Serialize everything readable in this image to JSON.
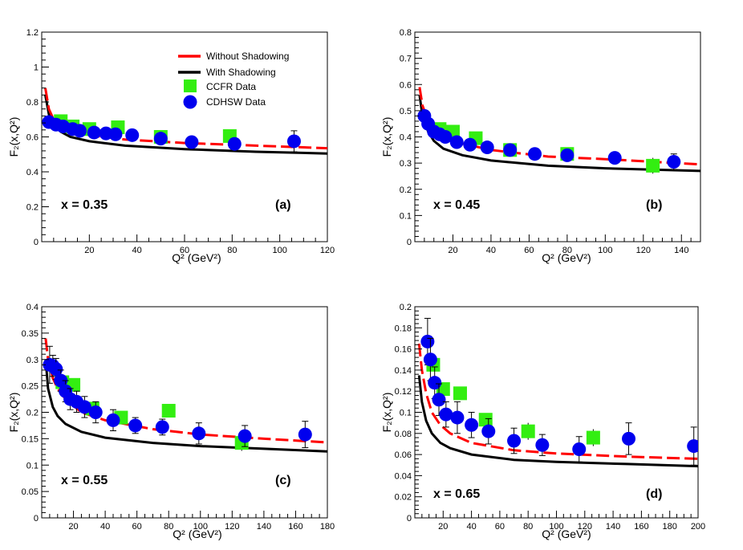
{
  "legend": {
    "without_label": "Without Shadowing",
    "with_label": "With Shadowing",
    "ccfr_label": "CCFR Data",
    "cdhsw_label": "CDHSW Data"
  },
  "colors": {
    "without": "#ff0000",
    "with": "#000000",
    "ccfr": "#33ee11",
    "cdhsw": "#0000ee"
  },
  "chart_data": [
    {
      "type": "scatter",
      "panel": "(a)",
      "x_value_label": "x = 0.35",
      "xlabel": "Q² (GeV²)",
      "ylabel": "F₂(x,Q²)",
      "xlim": [
        0,
        120
      ],
      "ylim": [
        0,
        1.2
      ],
      "xticks": [
        20,
        40,
        60,
        80,
        100,
        120
      ],
      "yticks": [
        0,
        0.2,
        0.4,
        0.6,
        0.8,
        1,
        1.2
      ],
      "ytick_labels": [
        "0",
        "0.2",
        "0.4",
        "0.6",
        "0.8",
        "1",
        "1.2"
      ],
      "without_shadowing": {
        "q2": [
          1.5,
          3,
          5,
          8,
          12,
          20,
          35,
          60,
          90,
          120
        ],
        "f2": [
          0.88,
          0.76,
          0.7,
          0.66,
          0.635,
          0.61,
          0.585,
          0.565,
          0.55,
          0.535
        ]
      },
      "with_shadowing": {
        "q2": [
          1.5,
          3,
          5,
          8,
          12,
          20,
          35,
          60,
          90,
          120
        ],
        "f2": [
          0.84,
          0.73,
          0.67,
          0.63,
          0.6,
          0.575,
          0.55,
          0.53,
          0.515,
          0.505
        ]
      },
      "ccfr": {
        "q2": [
          8,
          13,
          20,
          32,
          50,
          79
        ],
        "f2": [
          0.69,
          0.66,
          0.645,
          0.655,
          0.6,
          0.605
        ],
        "err": [
          0.02,
          0.02,
          0.02,
          0.02,
          0.02,
          0.02
        ]
      },
      "cdhsw": {
        "q2": [
          3,
          6,
          9,
          13,
          16,
          22,
          27,
          31,
          38,
          50,
          63,
          81,
          106
        ],
        "f2": [
          0.685,
          0.67,
          0.66,
          0.645,
          0.635,
          0.625,
          0.62,
          0.615,
          0.61,
          0.59,
          0.57,
          0.56,
          0.575
        ],
        "err": [
          0.03,
          0.02,
          0.02,
          0.02,
          0.02,
          0.02,
          0.02,
          0.02,
          0.02,
          0.02,
          0.02,
          0.03,
          0.06
        ]
      }
    },
    {
      "type": "scatter",
      "panel": "(b)",
      "x_value_label": "x = 0.45",
      "xlabel": "Q² (GeV²)",
      "ylabel": "F₂(x,Q²)",
      "xlim": [
        0,
        150
      ],
      "ylim": [
        0,
        0.8
      ],
      "xticks": [
        20,
        40,
        60,
        80,
        100,
        120,
        140
      ],
      "yticks": [
        0,
        0.1,
        0.2,
        0.3,
        0.4,
        0.5,
        0.6,
        0.7,
        0.8
      ],
      "ytick_labels": [
        "0",
        "0.1",
        "0.2",
        "0.3",
        "0.4",
        "0.5",
        "0.6",
        "0.7",
        "0.8"
      ],
      "without_shadowing": {
        "q2": [
          2.5,
          4,
          7,
          10,
          15,
          25,
          40,
          70,
          100,
          150
        ],
        "f2": [
          0.59,
          0.52,
          0.46,
          0.43,
          0.405,
          0.375,
          0.35,
          0.325,
          0.315,
          0.295
        ]
      },
      "with_shadowing": {
        "q2": [
          2.5,
          4,
          7,
          10,
          15,
          25,
          40,
          70,
          100,
          150
        ],
        "f2": [
          0.56,
          0.48,
          0.42,
          0.385,
          0.355,
          0.33,
          0.31,
          0.29,
          0.28,
          0.27
        ]
      },
      "ccfr": {
        "q2": [
          13,
          20,
          32,
          50,
          80,
          125
        ],
        "f2": [
          0.43,
          0.42,
          0.395,
          0.35,
          0.335,
          0.29
        ],
        "err": [
          0.02,
          0.02,
          0.02,
          0.02,
          0.02,
          0.03
        ]
      },
      "cdhsw": {
        "q2": [
          5,
          7,
          10,
          13,
          16,
          22,
          29,
          38,
          50,
          63,
          80,
          105,
          136
        ],
        "f2": [
          0.48,
          0.45,
          0.42,
          0.41,
          0.4,
          0.38,
          0.37,
          0.36,
          0.35,
          0.335,
          0.33,
          0.32,
          0.305
        ],
        "err": [
          0.02,
          0.02,
          0.02,
          0.02,
          0.02,
          0.02,
          0.02,
          0.02,
          0.02,
          0.02,
          0.02,
          0.02,
          0.03
        ]
      }
    },
    {
      "type": "scatter",
      "panel": "(c)",
      "x_value_label": "x = 0.55",
      "xlabel": "Q² (GeV²)",
      "ylabel": "F₂(x,Q²)",
      "xlim": [
        0,
        180
      ],
      "ylim": [
        0,
        0.4
      ],
      "xticks": [
        20,
        40,
        60,
        80,
        100,
        120,
        140,
        160,
        180
      ],
      "yticks": [
        0,
        0.05,
        0.1,
        0.15,
        0.2,
        0.25,
        0.3,
        0.35,
        0.4
      ],
      "ytick_labels": [
        "0",
        "0.05",
        "0.1",
        "0.15",
        "0.2",
        "0.25",
        "0.3",
        "0.35",
        "0.4"
      ],
      "without_shadowing": {
        "q2": [
          2.5,
          4,
          7,
          10,
          15,
          25,
          40,
          70,
          100,
          140,
          180
        ],
        "f2": [
          0.34,
          0.3,
          0.265,
          0.245,
          0.225,
          0.2,
          0.185,
          0.168,
          0.158,
          0.15,
          0.143
        ]
      },
      "with_shadowing": {
        "q2": [
          2.5,
          4,
          7,
          10,
          15,
          25,
          40,
          70,
          100,
          140,
          180
        ],
        "f2": [
          0.3,
          0.245,
          0.21,
          0.193,
          0.178,
          0.163,
          0.152,
          0.142,
          0.136,
          0.131,
          0.126
        ]
      },
      "ccfr": {
        "q2": [
          13,
          20,
          32,
          50,
          80,
          126
        ],
        "f2": [
          0.257,
          0.252,
          0.207,
          0.19,
          0.203,
          0.142
        ],
        "err": [
          0.01,
          0.01,
          0.01,
          0.01,
          0.01,
          0.015
        ]
      },
      "cdhsw": {
        "q2": [
          5,
          7,
          9,
          12,
          15,
          18,
          22,
          27,
          34,
          45,
          59,
          76,
          99,
          128,
          166
        ],
        "f2": [
          0.29,
          0.288,
          0.282,
          0.26,
          0.24,
          0.225,
          0.22,
          0.21,
          0.2,
          0.185,
          0.175,
          0.172,
          0.16,
          0.155,
          0.158
        ],
        "err": [
          0.035,
          0.02,
          0.02,
          0.02,
          0.02,
          0.02,
          0.02,
          0.02,
          0.02,
          0.02,
          0.015,
          0.015,
          0.02,
          0.02,
          0.025
        ]
      }
    },
    {
      "type": "scatter",
      "panel": "(d)",
      "x_value_label": "x = 0.65",
      "xlabel": "Q² (GeV²)",
      "ylabel": "F₂(x,Q²)",
      "xlim": [
        0,
        200
      ],
      "ylim": [
        0,
        0.2
      ],
      "xticks": [
        20,
        40,
        60,
        80,
        100,
        120,
        140,
        160,
        180,
        200
      ],
      "yticks": [
        0,
        0.02,
        0.04,
        0.06,
        0.08,
        0.1,
        0.12,
        0.14,
        0.16,
        0.18,
        0.2
      ],
      "ytick_labels": [
        "0",
        "0.02",
        "0.04",
        "0.06",
        "0.08",
        "0.1",
        "0.12",
        "0.14",
        "0.16",
        "0.18",
        "0.2"
      ],
      "without_shadowing": {
        "q2": [
          3,
          5,
          8,
          12,
          18,
          25,
          40,
          70,
          100,
          150,
          200
        ],
        "f2": [
          0.165,
          0.14,
          0.118,
          0.1,
          0.088,
          0.08,
          0.071,
          0.064,
          0.061,
          0.058,
          0.056
        ]
      },
      "with_shadowing": {
        "q2": [
          3,
          5,
          8,
          12,
          18,
          25,
          40,
          70,
          100,
          150,
          200
        ],
        "f2": [
          0.135,
          0.11,
          0.092,
          0.08,
          0.071,
          0.066,
          0.06,
          0.055,
          0.053,
          0.051,
          0.049
        ]
      },
      "ccfr": {
        "q2": [
          13,
          20,
          32,
          50,
          80,
          126
        ],
        "f2": [
          0.145,
          0.122,
          0.118,
          0.093,
          0.082,
          0.076
        ],
        "err": [
          0.005,
          0.005,
          0.005,
          0.005,
          0.008,
          0.008
        ]
      },
      "cdhsw": {
        "q2": [
          9,
          11,
          14,
          17,
          22,
          30,
          40,
          52,
          70,
          90,
          116,
          151,
          197
        ],
        "f2": [
          0.167,
          0.15,
          0.128,
          0.112,
          0.098,
          0.095,
          0.088,
          0.082,
          0.073,
          0.069,
          0.065,
          0.075,
          0.068
        ],
        "err": [
          0.022,
          0.02,
          0.015,
          0.015,
          0.012,
          0.015,
          0.012,
          0.012,
          0.012,
          0.01,
          0.012,
          0.015,
          0.018
        ]
      }
    }
  ]
}
